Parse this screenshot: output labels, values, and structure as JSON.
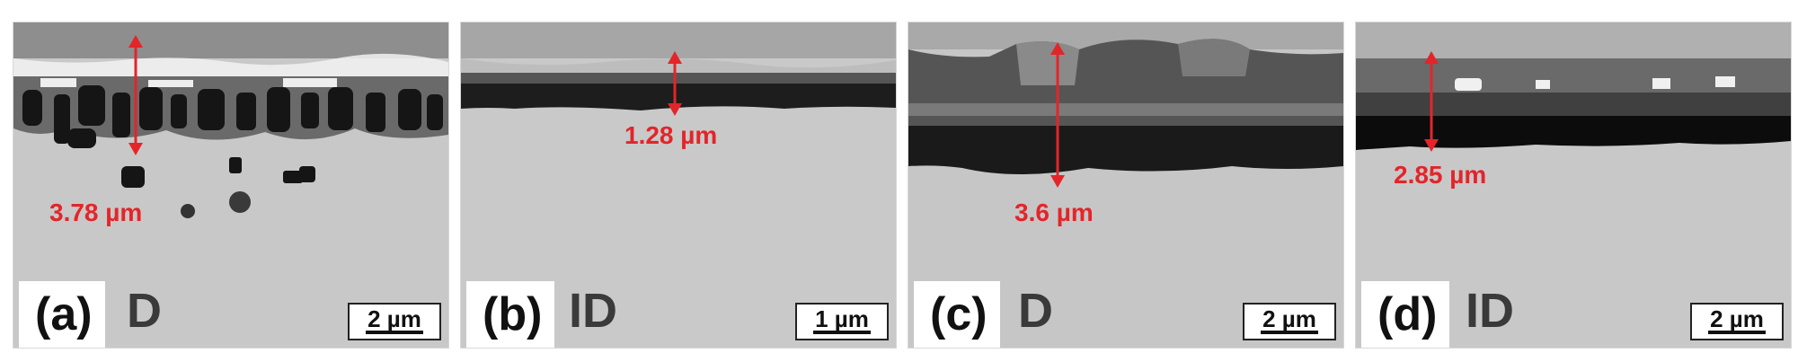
{
  "panels": [
    {
      "id": "a",
      "label": "(a)",
      "condition": "D",
      "scale": "2 µm",
      "measurement": "3.78 µm"
    },
    {
      "id": "b",
      "label": "(b)",
      "condition": "ID",
      "scale": "1 µm",
      "measurement": "1.28 µm"
    },
    {
      "id": "c",
      "label": "(c)",
      "condition": "D",
      "scale": "2 µm",
      "measurement": "3.6 µm"
    },
    {
      "id": "d",
      "label": "(d)",
      "condition": "ID",
      "scale": "2 µm",
      "measurement": "2.85 µm"
    }
  ],
  "colors": {
    "arrow": "#e3252a",
    "substrate": "#c9c9c9",
    "oxide_dark": "#1d1d1d",
    "oxide_mid": "#5a5a5a",
    "top_layer": "#9a9a9a"
  }
}
